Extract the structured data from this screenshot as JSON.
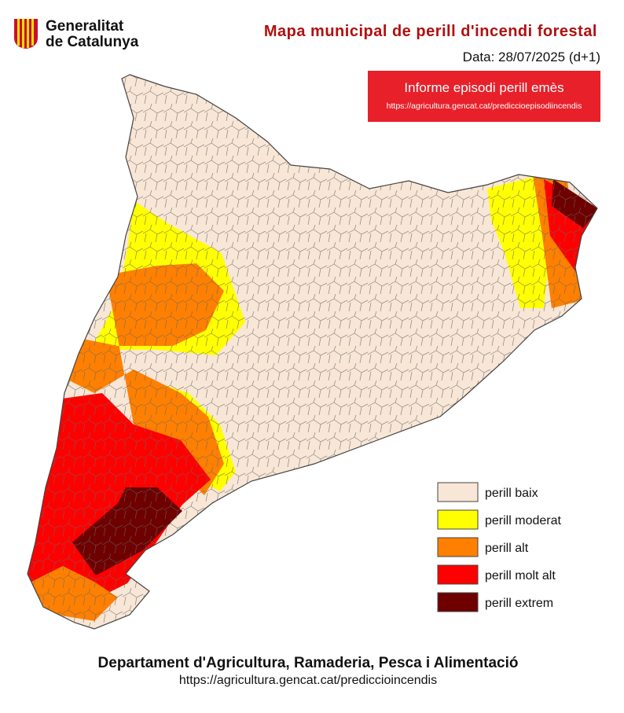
{
  "header": {
    "logo_line1": "Generalitat",
    "logo_line2": "de Catalunya",
    "title": "Mapa municipal de perill d'incendi forestal",
    "date": "Data: 28/07/2025 (d+1)"
  },
  "alert": {
    "title": "Informe episodi perill emès",
    "url": "https://agricultura.gencat.cat/prediccioepisodiincendis"
  },
  "legend": [
    {
      "label": "perill baix",
      "color": "#f8e6d6"
    },
    {
      "label": "perill moderat",
      "color": "#ffff00"
    },
    {
      "label": "perill alt",
      "color": "#ff8000"
    },
    {
      "label": "perill molt alt",
      "color": "#ff0000"
    },
    {
      "label": "perill extrem",
      "color": "#6e0000"
    }
  ],
  "footer": {
    "department": "Departament d'Agricultura, Ramaderia, Pesca i Alimentació",
    "url": "https://agricultura.gencat.cat/prediccioincendis"
  }
}
